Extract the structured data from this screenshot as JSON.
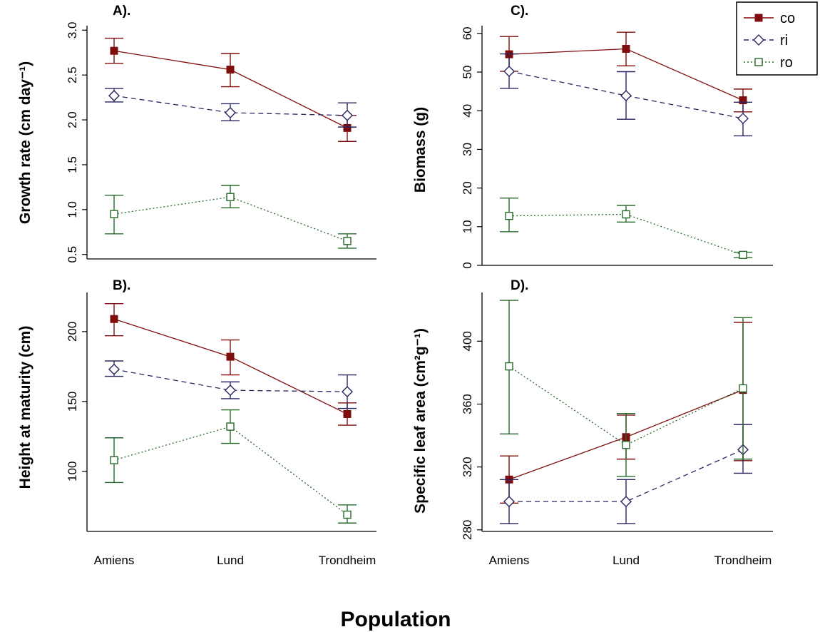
{
  "colors": {
    "co": "#7f0d0d",
    "ri": "#262661",
    "ro": "#27692b",
    "axis": "#000000"
  },
  "legend": {
    "placement": "top-right",
    "entries": [
      {
        "key": "co",
        "label": "co",
        "marker": "filled-square",
        "line": "solid"
      },
      {
        "key": "ri",
        "label": "ri",
        "marker": "open-diamond",
        "line": "dashed"
      },
      {
        "key": "ro",
        "label": "ro",
        "marker": "open-square",
        "line": "dotted"
      }
    ]
  },
  "overall_xlabel": "Population",
  "chart_data": [
    {
      "panel": "A).",
      "type": "line",
      "title": "",
      "xlabel": "",
      "ylabel": "Growth rate (cm day⁻¹)",
      "ylim": [
        0.45,
        3.05
      ],
      "yticks": [
        0.5,
        1.0,
        1.5,
        2.0,
        2.5,
        3.0
      ],
      "ytick_labels": [
        "0.5",
        "1.0",
        "1.5",
        "2.0",
        "2.5",
        "3.0"
      ],
      "categories": [
        "Amiens",
        "Lund",
        "Trondheim"
      ],
      "show_xtick_labels": false,
      "series": [
        {
          "key": "co",
          "name": "co",
          "values": [
            2.77,
            2.56,
            1.91
          ],
          "lower": [
            2.63,
            2.37,
            1.76
          ],
          "upper": [
            2.91,
            2.74,
            2.05
          ]
        },
        {
          "key": "ri",
          "name": "ri",
          "values": [
            2.27,
            2.08,
            2.05
          ],
          "lower": [
            2.2,
            1.99,
            1.92
          ],
          "upper": [
            2.35,
            2.18,
            2.19
          ]
        },
        {
          "key": "ro",
          "name": "ro",
          "values": [
            0.95,
            1.14,
            0.65
          ],
          "lower": [
            0.73,
            1.02,
            0.57
          ],
          "upper": [
            1.16,
            1.27,
            0.73
          ]
        }
      ]
    },
    {
      "panel": "B).",
      "type": "line",
      "title": "",
      "xlabel": "",
      "ylabel": "Height at maturity (cm)",
      "ylim": [
        57,
        228
      ],
      "yticks": [
        100,
        150,
        200
      ],
      "ytick_labels": [
        "100",
        "150",
        "200"
      ],
      "categories": [
        "Amiens",
        "Lund",
        "Trondheim"
      ],
      "show_xtick_labels": true,
      "series": [
        {
          "key": "co",
          "name": "co",
          "values": [
            209,
            182,
            141
          ],
          "lower": [
            197,
            169,
            133
          ],
          "upper": [
            220,
            194,
            149
          ]
        },
        {
          "key": "ri",
          "name": "ri",
          "values": [
            173,
            158,
            157
          ],
          "lower": [
            168,
            152,
            145
          ],
          "upper": [
            179,
            164,
            169
          ]
        },
        {
          "key": "ro",
          "name": "ro",
          "values": [
            108,
            132,
            69
          ],
          "lower": [
            92,
            120,
            63
          ],
          "upper": [
            124,
            144,
            76
          ]
        }
      ]
    },
    {
      "panel": "C).",
      "type": "line",
      "title": "",
      "xlabel": "",
      "ylabel": "Biomass (g)",
      "ylim": [
        0,
        62
      ],
      "yticks": [
        0,
        10,
        20,
        30,
        40,
        50,
        60
      ],
      "ytick_labels": [
        "0",
        "10",
        "20",
        "30",
        "40",
        "50",
        "60"
      ],
      "categories": [
        "Amiens",
        "Lund",
        "Trondheim"
      ],
      "show_xtick_labels": false,
      "series": [
        {
          "key": "co",
          "name": "co",
          "values": [
            54.6,
            56.0,
            42.7
          ],
          "lower": [
            50.2,
            51.6,
            39.7
          ],
          "upper": [
            59.2,
            60.3,
            45.6
          ]
        },
        {
          "key": "ri",
          "name": "ri",
          "values": [
            50.2,
            43.9,
            38.0
          ],
          "lower": [
            45.8,
            37.8,
            33.5
          ],
          "upper": [
            54.7,
            50.1,
            42.2
          ]
        },
        {
          "key": "ro",
          "name": "ro",
          "values": [
            12.8,
            13.2,
            2.7
          ],
          "lower": [
            8.7,
            11.2,
            2.0
          ],
          "upper": [
            17.4,
            15.5,
            3.4
          ]
        }
      ]
    },
    {
      "panel": "D).",
      "type": "line",
      "title": "",
      "xlabel": "",
      "ylabel": "Specific leaf area (cm²g⁻¹)",
      "ylim": [
        279,
        431
      ],
      "yticks": [
        280,
        320,
        360,
        400
      ],
      "ytick_labels": [
        "280",
        "320",
        "360",
        "400"
      ],
      "categories": [
        "Amiens",
        "Lund",
        "Trondheim"
      ],
      "show_xtick_labels": true,
      "series": [
        {
          "key": "co",
          "name": "co",
          "values": [
            312,
            339,
            369
          ],
          "lower": [
            297,
            325,
            324
          ],
          "upper": [
            327,
            353,
            412
          ]
        },
        {
          "key": "ri",
          "name": "ri",
          "values": [
            298,
            298,
            331
          ],
          "lower": [
            284,
            284,
            316
          ],
          "upper": [
            312,
            312,
            347
          ]
        },
        {
          "key": "ro",
          "name": "ro",
          "values": [
            384,
            334,
            370
          ],
          "lower": [
            341,
            314,
            325
          ],
          "upper": [
            426,
            354,
            415
          ]
        }
      ]
    }
  ]
}
